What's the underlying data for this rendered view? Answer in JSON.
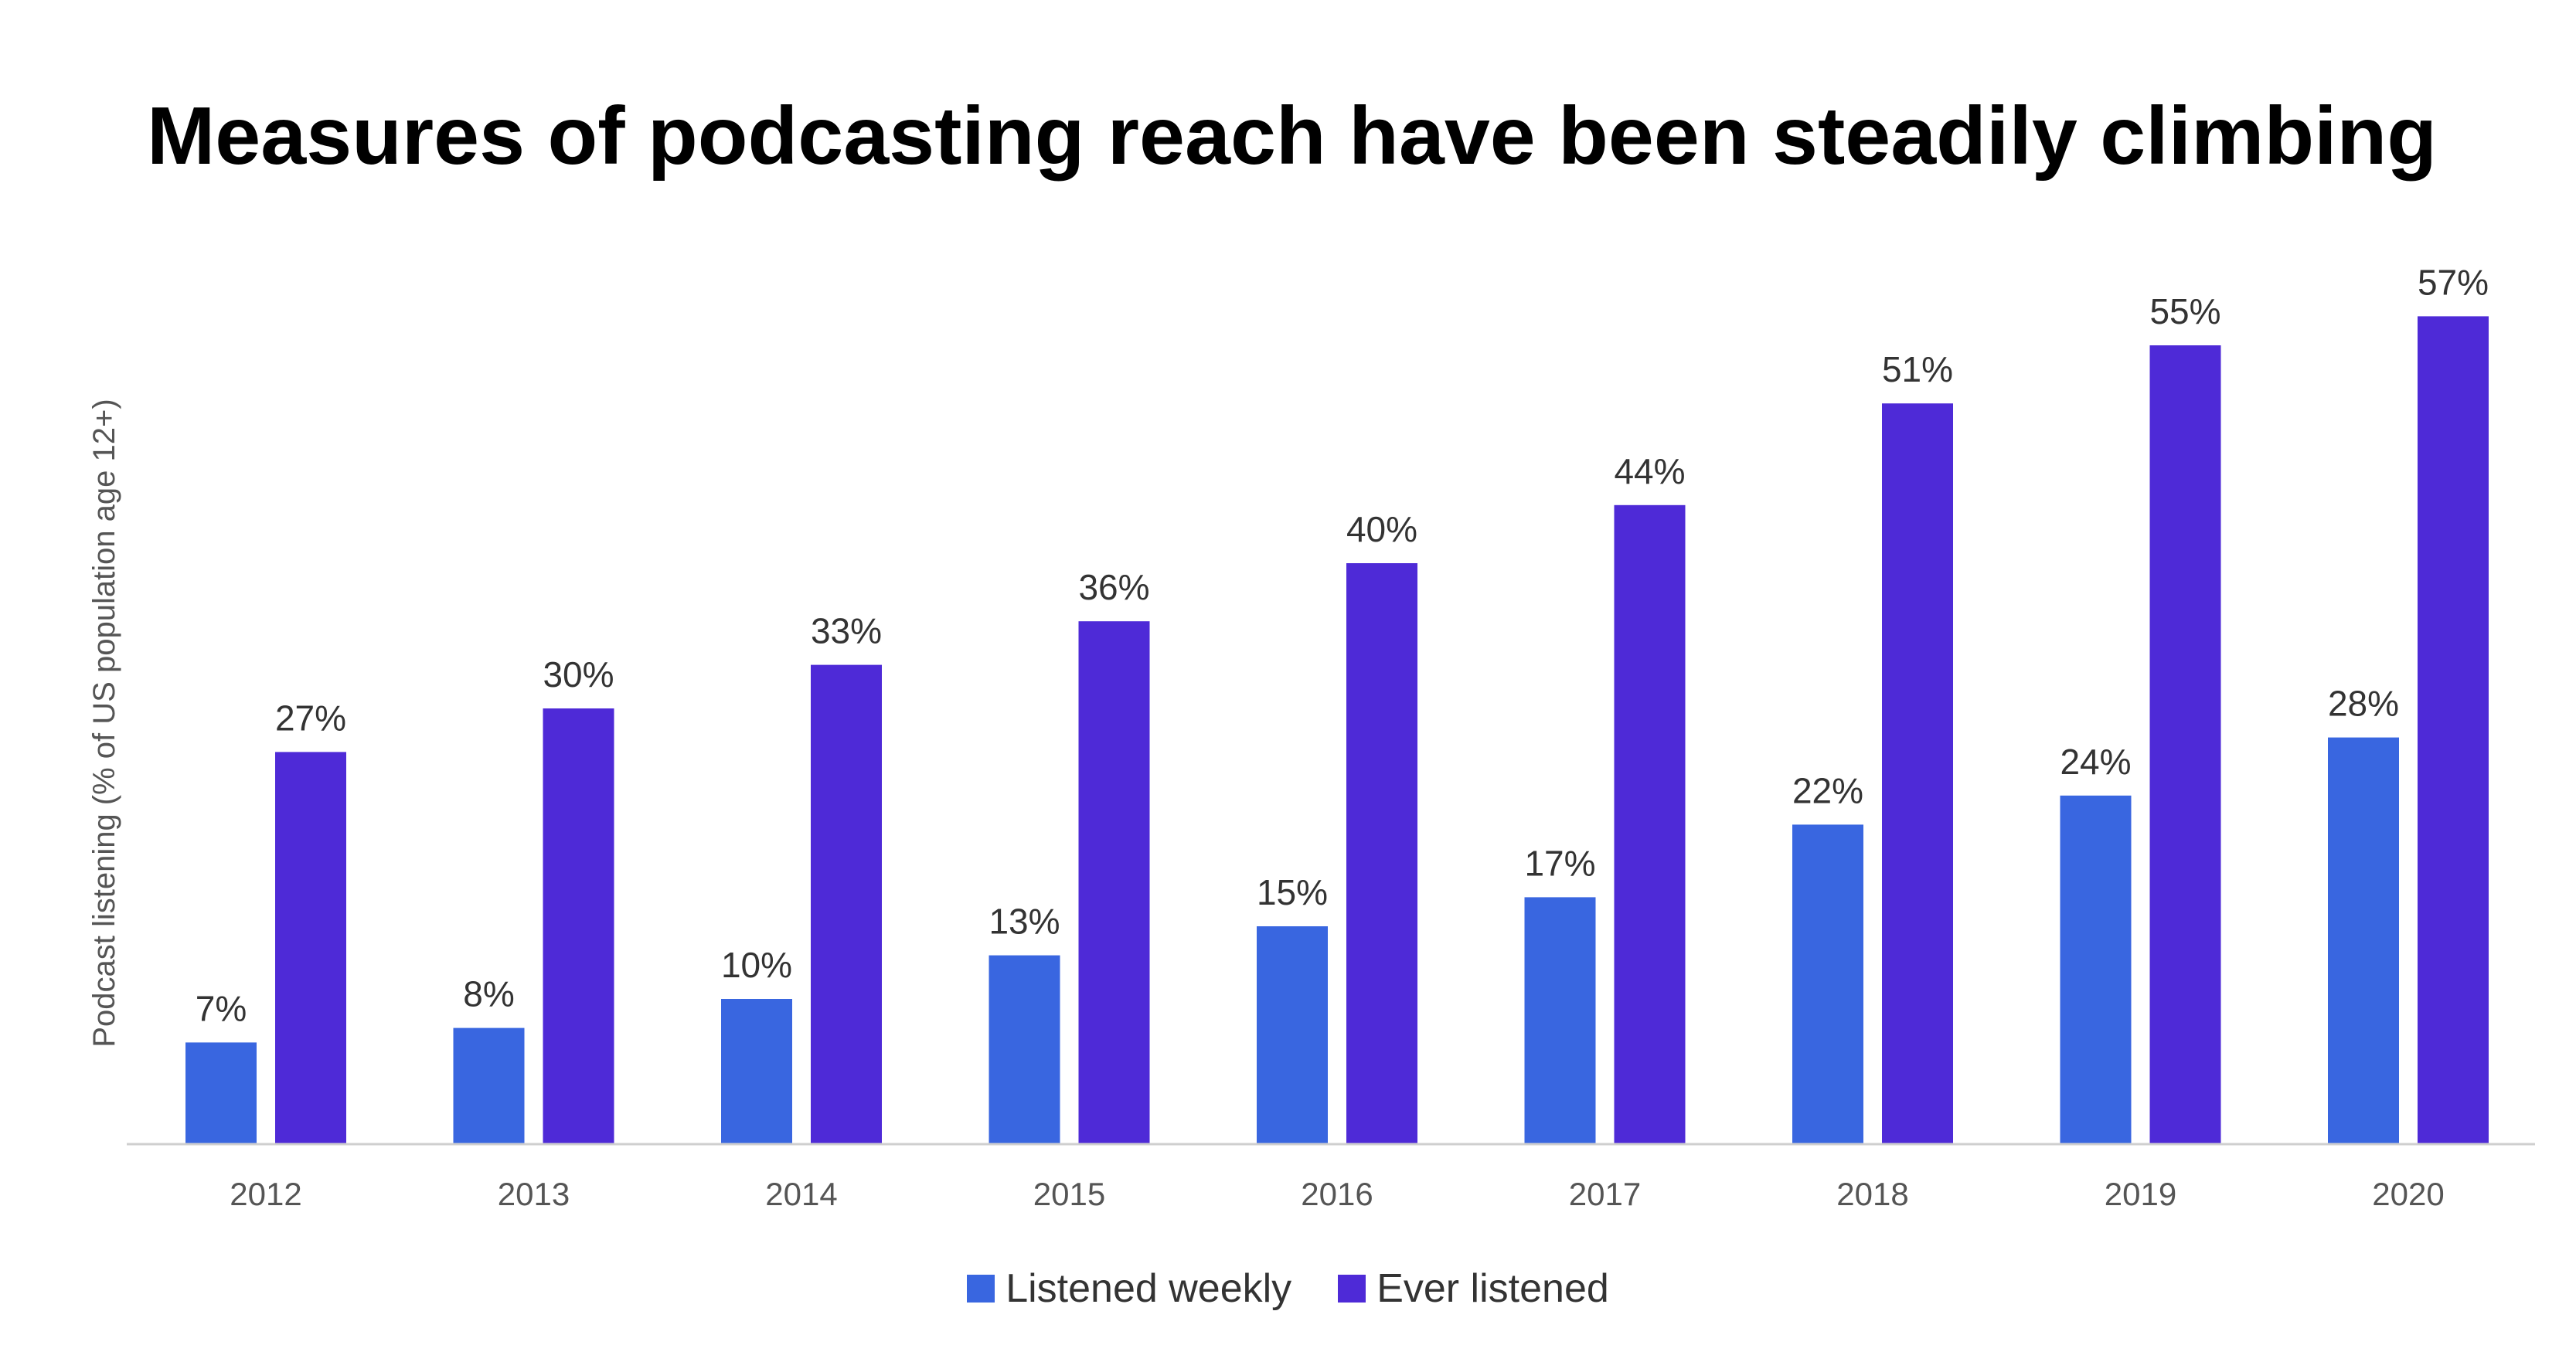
{
  "chart_data": {
    "type": "bar",
    "title": "Measures of podcasting reach have been steadily climbing",
    "xlabel": "",
    "ylabel": "Podcast listening (% of US population age 12+)",
    "ylim": [
      0,
      60
    ],
    "grid": false,
    "legend_position": "bottom-center",
    "categories": [
      "2012",
      "2013",
      "2014",
      "2015",
      "2016",
      "2017",
      "2018",
      "2019",
      "2020"
    ],
    "series": [
      {
        "name": "Listened weekly",
        "color": "#3966e0",
        "values": [
          7,
          8,
          10,
          13,
          15,
          17,
          22,
          24,
          28
        ],
        "labels": [
          "7%",
          "8%",
          "10%",
          "13%",
          "15%",
          "17%",
          "22%",
          "24%",
          "28%"
        ]
      },
      {
        "name": "Ever listened",
        "color": "#4e2ad7",
        "values": [
          27,
          30,
          33,
          36,
          40,
          44,
          51,
          55,
          57
        ],
        "labels": [
          "27%",
          "30%",
          "33%",
          "36%",
          "40%",
          "44%",
          "51%",
          "55%",
          "57%"
        ]
      }
    ]
  }
}
